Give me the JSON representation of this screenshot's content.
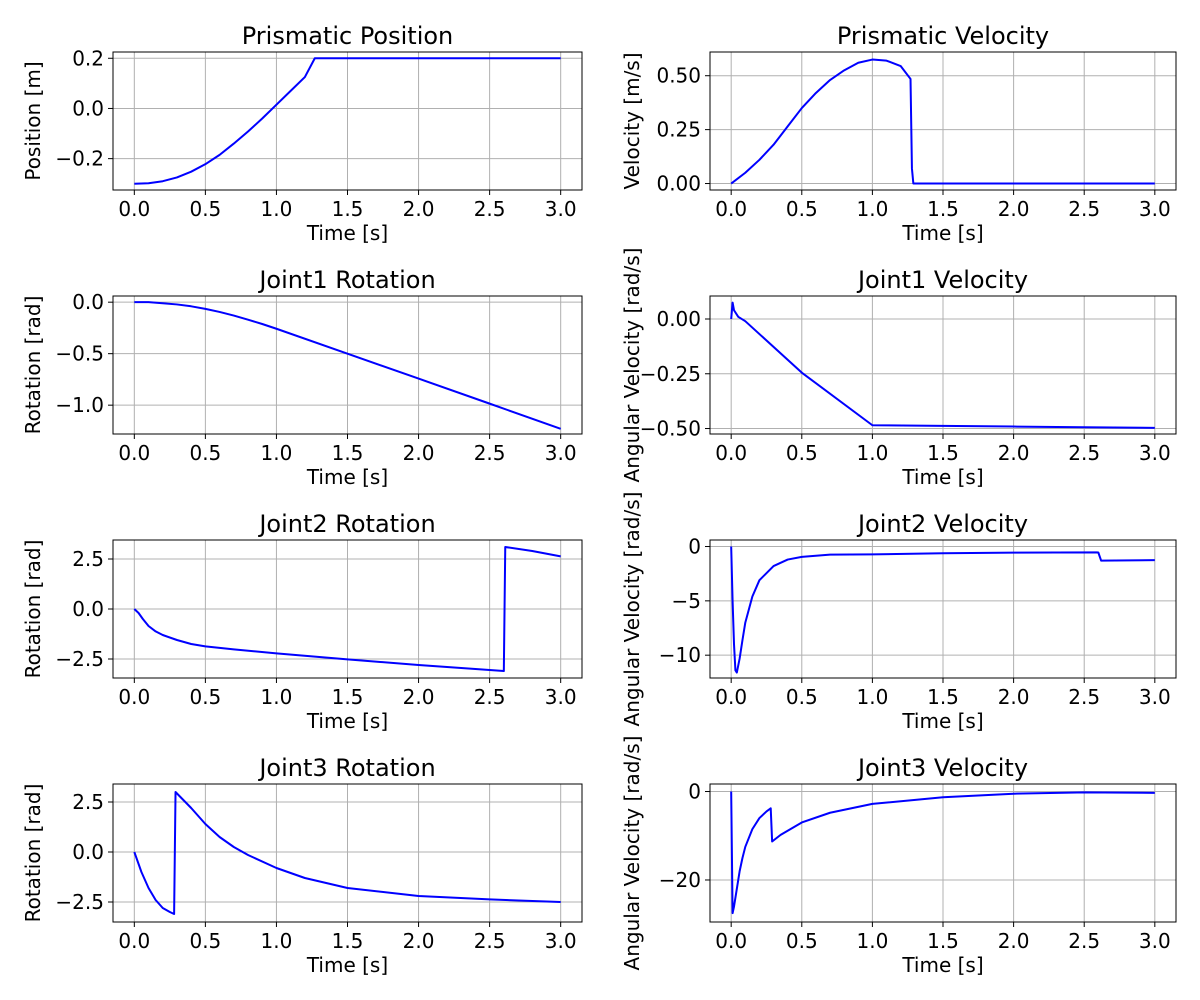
{
  "series_color": "#0000ff",
  "chart_data": [
    {
      "type": "line",
      "title": "Prismatic Position",
      "xlabel": "Time [s]",
      "ylabel": "Position [m]",
      "xlim": [
        -0.15,
        3.15
      ],
      "ylim": [
        -0.325,
        0.225
      ],
      "xticks": [
        0.0,
        0.5,
        1.0,
        1.5,
        2.0,
        2.5,
        3.0
      ],
      "xtick_labels": [
        "0.0",
        "0.5",
        "1.0",
        "1.5",
        "2.0",
        "2.5",
        "3.0"
      ],
      "yticks": [
        -0.2,
        0.0,
        0.2
      ],
      "ytick_labels": [
        "−0.2",
        "0.0",
        "0.2"
      ],
      "grid": true,
      "series": [
        {
          "values": [
            [
              0,
              -0.3
            ],
            [
              0.1,
              -0.298
            ],
            [
              0.2,
              -0.29
            ],
            [
              0.3,
              -0.275
            ],
            [
              0.4,
              -0.252
            ],
            [
              0.5,
              -0.222
            ],
            [
              0.6,
              -0.185
            ],
            [
              0.7,
              -0.14
            ],
            [
              0.8,
              -0.092
            ],
            [
              0.9,
              -0.04
            ],
            [
              1.0,
              0.015
            ],
            [
              1.1,
              0.07
            ],
            [
              1.2,
              0.125
            ],
            [
              1.27,
              0.2
            ],
            [
              1.3,
              0.2
            ],
            [
              1.5,
              0.2
            ],
            [
              2.0,
              0.2
            ],
            [
              2.5,
              0.2
            ],
            [
              3.0,
              0.2
            ]
          ]
        }
      ]
    },
    {
      "type": "line",
      "title": "Prismatic Velocity",
      "xlabel": "Time [s]",
      "ylabel": "Velocity [m/s]",
      "xlim": [
        -0.15,
        3.15
      ],
      "ylim": [
        -0.03,
        0.61
      ],
      "xticks": [
        0.0,
        0.5,
        1.0,
        1.5,
        2.0,
        2.5,
        3.0
      ],
      "xtick_labels": [
        "0.0",
        "0.5",
        "1.0",
        "1.5",
        "2.0",
        "2.5",
        "3.0"
      ],
      "yticks": [
        0.0,
        0.25,
        0.5
      ],
      "ytick_labels": [
        "0.00",
        "0.25",
        "0.50"
      ],
      "grid": true,
      "series": [
        {
          "values": [
            [
              0,
              0.0
            ],
            [
              0.1,
              0.05
            ],
            [
              0.2,
              0.11
            ],
            [
              0.3,
              0.18
            ],
            [
              0.4,
              0.265
            ],
            [
              0.5,
              0.35
            ],
            [
              0.6,
              0.42
            ],
            [
              0.7,
              0.48
            ],
            [
              0.8,
              0.525
            ],
            [
              0.9,
              0.56
            ],
            [
              1.0,
              0.575
            ],
            [
              1.1,
              0.57
            ],
            [
              1.2,
              0.545
            ],
            [
              1.27,
              0.485
            ],
            [
              1.28,
              0.07
            ],
            [
              1.29,
              0.0
            ],
            [
              1.5,
              0.0
            ],
            [
              2.0,
              0.0
            ],
            [
              2.5,
              0.0
            ],
            [
              3.0,
              0.0
            ]
          ]
        }
      ]
    },
    {
      "type": "line",
      "title": "Joint1 Rotation",
      "xlabel": "Time [s]",
      "ylabel": "Rotation [rad]",
      "xlim": [
        -0.15,
        3.15
      ],
      "ylim": [
        -1.28,
        0.06
      ],
      "xticks": [
        0.0,
        0.5,
        1.0,
        1.5,
        2.0,
        2.5,
        3.0
      ],
      "xtick_labels": [
        "0.0",
        "0.5",
        "1.0",
        "1.5",
        "2.0",
        "2.5",
        "3.0"
      ],
      "yticks": [
        -1.0,
        -0.5,
        0.0
      ],
      "ytick_labels": [
        "−1.0",
        "−0.5",
        "0.0"
      ],
      "grid": true,
      "series": [
        {
          "values": [
            [
              0,
              0.0
            ],
            [
              0.1,
              0.0
            ],
            [
              0.2,
              -0.01
            ],
            [
              0.3,
              -0.022
            ],
            [
              0.4,
              -0.04
            ],
            [
              0.5,
              -0.065
            ],
            [
              0.6,
              -0.095
            ],
            [
              0.7,
              -0.13
            ],
            [
              0.8,
              -0.17
            ],
            [
              0.9,
              -0.212
            ],
            [
              1.0,
              -0.258
            ],
            [
              1.5,
              -0.5
            ],
            [
              2.0,
              -0.742
            ],
            [
              2.5,
              -0.985
            ],
            [
              3.0,
              -1.23
            ]
          ]
        }
      ]
    },
    {
      "type": "line",
      "title": "Joint1 Velocity",
      "xlabel": "Time [s]",
      "ylabel": "Angular Velocity [rad/s]",
      "xlim": [
        -0.15,
        3.15
      ],
      "ylim": [
        -0.525,
        0.105
      ],
      "xticks": [
        0.0,
        0.5,
        1.0,
        1.5,
        2.0,
        2.5,
        3.0
      ],
      "xtick_labels": [
        "0.0",
        "0.5",
        "1.0",
        "1.5",
        "2.0",
        "2.5",
        "3.0"
      ],
      "yticks": [
        -0.5,
        -0.25,
        0.0
      ],
      "ytick_labels": [
        "−0.50",
        "−0.25",
        "0.00"
      ],
      "grid": true,
      "series": [
        {
          "values": [
            [
              0,
              0.0
            ],
            [
              0.01,
              0.075
            ],
            [
              0.02,
              0.04
            ],
            [
              0.05,
              0.01
            ],
            [
              0.1,
              -0.01
            ],
            [
              0.5,
              -0.245
            ],
            [
              1.0,
              -0.485
            ],
            [
              1.5,
              -0.488
            ],
            [
              2.0,
              -0.491
            ],
            [
              2.5,
              -0.494
            ],
            [
              3.0,
              -0.497
            ]
          ]
        }
      ]
    },
    {
      "type": "line",
      "title": "Joint2 Rotation",
      "xlabel": "Time [s]",
      "ylabel": "Rotation [rad]",
      "xlim": [
        -0.15,
        3.15
      ],
      "ylim": [
        -3.45,
        3.45
      ],
      "xticks": [
        0.0,
        0.5,
        1.0,
        1.5,
        2.0,
        2.5,
        3.0
      ],
      "xtick_labels": [
        "0.0",
        "0.5",
        "1.0",
        "1.5",
        "2.0",
        "2.5",
        "3.0"
      ],
      "yticks": [
        -2.5,
        0.0,
        2.5
      ],
      "ytick_labels": [
        "−2.5",
        "0.0",
        "2.5"
      ],
      "grid": true,
      "series": [
        {
          "values": [
            [
              0,
              0.0
            ],
            [
              0.03,
              -0.2
            ],
            [
              0.06,
              -0.5
            ],
            [
              0.1,
              -0.85
            ],
            [
              0.15,
              -1.12
            ],
            [
              0.2,
              -1.3
            ],
            [
              0.3,
              -1.55
            ],
            [
              0.4,
              -1.75
            ],
            [
              0.5,
              -1.87
            ],
            [
              0.7,
              -2.02
            ],
            [
              1.0,
              -2.22
            ],
            [
              1.5,
              -2.52
            ],
            [
              2.0,
              -2.8
            ],
            [
              2.5,
              -3.05
            ],
            [
              2.6,
              -3.1
            ],
            [
              2.61,
              3.1
            ],
            [
              2.8,
              2.9
            ],
            [
              3.0,
              2.63
            ]
          ]
        }
      ]
    },
    {
      "type": "line",
      "title": "Joint2 Velocity",
      "xlabel": "Time [s]",
      "ylabel": "Angular Velocity [rad/s]",
      "xlim": [
        -0.15,
        3.15
      ],
      "ylim": [
        -12.1,
        0.6
      ],
      "xticks": [
        0.0,
        0.5,
        1.0,
        1.5,
        2.0,
        2.5,
        3.0
      ],
      "xtick_labels": [
        "0.0",
        "0.5",
        "1.0",
        "1.5",
        "2.0",
        "2.5",
        "3.0"
      ],
      "yticks": [
        -10,
        -5,
        0
      ],
      "ytick_labels": [
        "−10",
        "−5",
        "0"
      ],
      "grid": true,
      "series": [
        {
          "values": [
            [
              0,
              0.0
            ],
            [
              0.01,
              -5.0
            ],
            [
              0.02,
              -9.0
            ],
            [
              0.03,
              -11.4
            ],
            [
              0.04,
              -11.6
            ],
            [
              0.06,
              -10.3
            ],
            [
              0.08,
              -8.6
            ],
            [
              0.1,
              -7.0
            ],
            [
              0.15,
              -4.6
            ],
            [
              0.2,
              -3.1
            ],
            [
              0.3,
              -1.8
            ],
            [
              0.4,
              -1.2
            ],
            [
              0.5,
              -0.95
            ],
            [
              0.7,
              -0.75
            ],
            [
              1.0,
              -0.72
            ],
            [
              1.5,
              -0.62
            ],
            [
              2.0,
              -0.56
            ],
            [
              2.59,
              -0.54
            ],
            [
              2.6,
              -0.55
            ],
            [
              2.62,
              -1.3
            ],
            [
              3.0,
              -1.25
            ]
          ]
        }
      ]
    },
    {
      "type": "line",
      "title": "Joint3 Rotation",
      "xlabel": "Time [s]",
      "ylabel": "Rotation [rad]",
      "xlim": [
        -0.15,
        3.15
      ],
      "ylim": [
        -3.5,
        3.4
      ],
      "xticks": [
        0.0,
        0.5,
        1.0,
        1.5,
        2.0,
        2.5,
        3.0
      ],
      "xtick_labels": [
        "0.0",
        "0.5",
        "1.0",
        "1.5",
        "2.0",
        "2.5",
        "3.0"
      ],
      "yticks": [
        -2.5,
        0.0,
        2.5
      ],
      "ytick_labels": [
        "−2.5",
        "0.0",
        "2.5"
      ],
      "grid": true,
      "series": [
        {
          "values": [
            [
              0,
              0.0
            ],
            [
              0.05,
              -1.0
            ],
            [
              0.1,
              -1.8
            ],
            [
              0.15,
              -2.4
            ],
            [
              0.2,
              -2.8
            ],
            [
              0.25,
              -3.0
            ],
            [
              0.28,
              -3.1
            ],
            [
              0.29,
              3.0
            ],
            [
              0.4,
              2.2
            ],
            [
              0.5,
              1.4
            ],
            [
              0.6,
              0.75
            ],
            [
              0.7,
              0.25
            ],
            [
              0.8,
              -0.15
            ],
            [
              1.0,
              -0.8
            ],
            [
              1.2,
              -1.3
            ],
            [
              1.5,
              -1.8
            ],
            [
              2.0,
              -2.2
            ],
            [
              2.5,
              -2.37
            ],
            [
              3.0,
              -2.5
            ]
          ]
        }
      ]
    },
    {
      "type": "line",
      "title": "Joint3 Velocity",
      "xlabel": "Time [s]",
      "ylabel": "Angular Velocity [rad/s]",
      "xlim": [
        -0.15,
        3.15
      ],
      "ylim": [
        -29.5,
        1.7
      ],
      "xticks": [
        0.0,
        0.5,
        1.0,
        1.5,
        2.0,
        2.5,
        3.0
      ],
      "xtick_labels": [
        "0.0",
        "0.5",
        "1.0",
        "1.5",
        "2.0",
        "2.5",
        "3.0"
      ],
      "yticks": [
        -20,
        0
      ],
      "ytick_labels": [
        "−20",
        "0"
      ],
      "grid": true,
      "series": [
        {
          "values": [
            [
              0,
              0.0
            ],
            [
              0.01,
              -27.5
            ],
            [
              0.02,
              -26.0
            ],
            [
              0.04,
              -22.0
            ],
            [
              0.06,
              -18.0
            ],
            [
              0.08,
              -15.0
            ],
            [
              0.1,
              -12.5
            ],
            [
              0.15,
              -8.5
            ],
            [
              0.2,
              -6.0
            ],
            [
              0.25,
              -4.5
            ],
            [
              0.28,
              -3.8
            ],
            [
              0.29,
              -11.3
            ],
            [
              0.35,
              -9.8
            ],
            [
              0.5,
              -7.0
            ],
            [
              0.7,
              -4.8
            ],
            [
              1.0,
              -2.8
            ],
            [
              1.5,
              -1.3
            ],
            [
              2.0,
              -0.5
            ],
            [
              2.5,
              -0.2
            ],
            [
              3.0,
              -0.3
            ]
          ]
        }
      ]
    }
  ]
}
